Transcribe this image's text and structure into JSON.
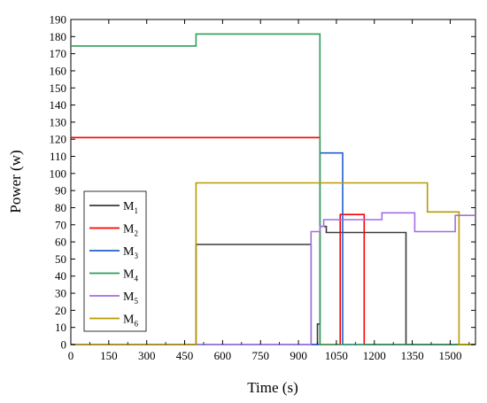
{
  "chart_data": {
    "type": "line",
    "title": "",
    "xlabel": "Time (s)",
    "ylabel": "Power (w)",
    "xlim": [
      0,
      1600
    ],
    "ylim": [
      0,
      190
    ],
    "xticks": [
      0,
      150,
      300,
      450,
      600,
      750,
      900,
      1050,
      1200,
      1350,
      1500
    ],
    "yticks": [
      0,
      10,
      20,
      30,
      40,
      50,
      60,
      70,
      80,
      90,
      100,
      110,
      120,
      130,
      140,
      150,
      160,
      170,
      180,
      190
    ],
    "grid": false,
    "legend_position": "left",
    "series": [
      {
        "name_main": "M",
        "name_sub": "1",
        "color": "#3a3a3a",
        "points": [
          [
            0,
            0
          ],
          [
            495,
            0
          ],
          [
            495,
            58.5
          ],
          [
            950,
            58.5
          ],
          [
            950,
            0
          ],
          [
            975,
            0
          ],
          [
            975,
            12
          ],
          [
            985,
            12
          ],
          [
            985,
            69
          ],
          [
            1010,
            69
          ],
          [
            1010,
            65.5
          ],
          [
            1325,
            65.5
          ],
          [
            1325,
            0
          ],
          [
            1600,
            0
          ]
        ]
      },
      {
        "name_main": "M",
        "name_sub": "2",
        "color": "#ff0000",
        "points": [
          [
            0,
            121
          ],
          [
            985,
            121
          ],
          [
            985,
            0
          ],
          [
            1065,
            0
          ],
          [
            1065,
            76
          ],
          [
            1160,
            76
          ],
          [
            1160,
            0
          ],
          [
            1600,
            0
          ]
        ]
      },
      {
        "name_main": "M",
        "name_sub": "3",
        "color": "#1f5fcf",
        "points": [
          [
            0,
            0
          ],
          [
            985,
            0
          ],
          [
            985,
            112
          ],
          [
            1075,
            112
          ],
          [
            1075,
            0
          ],
          [
            1600,
            0
          ]
        ]
      },
      {
        "name_main": "M",
        "name_sub": "4",
        "color": "#2e9e5b",
        "points": [
          [
            0,
            174.5
          ],
          [
            495,
            174.5
          ],
          [
            495,
            181.5
          ],
          [
            985,
            181.5
          ],
          [
            985,
            0
          ],
          [
            1600,
            0
          ]
        ]
      },
      {
        "name_main": "M",
        "name_sub": "5",
        "color": "#9f6fe3",
        "points": [
          [
            0,
            0
          ],
          [
            950,
            0
          ],
          [
            950,
            66
          ],
          [
            985,
            66
          ],
          [
            985,
            69
          ],
          [
            1000,
            69
          ],
          [
            1000,
            73
          ],
          [
            1230,
            73
          ],
          [
            1230,
            77
          ],
          [
            1360,
            77
          ],
          [
            1360,
            66
          ],
          [
            1520,
            66
          ],
          [
            1520,
            75.5
          ],
          [
            1600,
            75.5
          ]
        ]
      },
      {
        "name_main": "M",
        "name_sub": "6",
        "color": "#b99a00",
        "points": [
          [
            0,
            0
          ],
          [
            495,
            0
          ],
          [
            495,
            94.5
          ],
          [
            1410,
            94.5
          ],
          [
            1410,
            77.5
          ],
          [
            1535,
            77.5
          ],
          [
            1535,
            0
          ],
          [
            1600,
            0
          ]
        ]
      }
    ]
  }
}
